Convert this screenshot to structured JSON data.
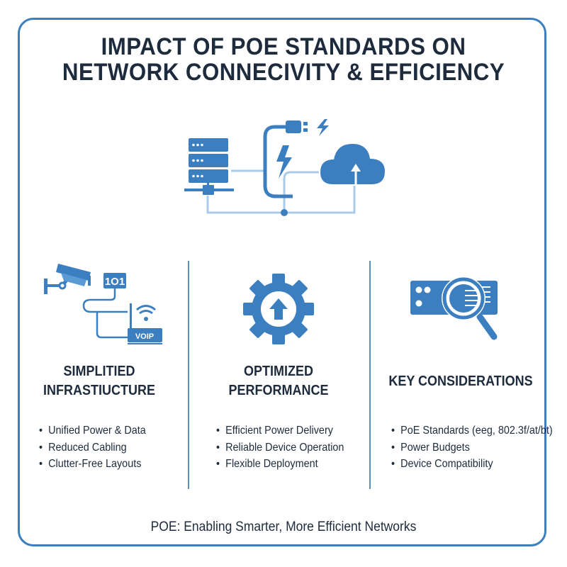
{
  "title": {
    "line1": "IMPACT OF POE STANDARDS ON",
    "line2": "NETWORK CONNECIVITY & EFFICIENCY"
  },
  "colors": {
    "accent": "#3b7fc0",
    "light_line": "#a9cbe8",
    "text": "#1d2b3c"
  },
  "hero": {
    "icons": [
      "server-icon",
      "network-connector-icon",
      "poe-cable-icon",
      "plug-icon",
      "lightning-icon",
      "cloud-upload-icon"
    ]
  },
  "columns": [
    {
      "heading1": "SIMPLITIED",
      "heading2": "INFRASTIUCTURE",
      "icon_label_box": "1O1",
      "icon_label_voip": "VOIP",
      "icons": [
        "security-camera-icon",
        "data-box-icon",
        "wifi-router-icon"
      ],
      "bullets": [
        "Unified Power & Data",
        "Reduced Cabling",
        "Clutter-Free Layouts"
      ]
    },
    {
      "heading1": "OPTIMIZED",
      "heading2": "PERFORMANCE",
      "icons": [
        "gear-upload-icon"
      ],
      "bullets": [
        "Efficient Power Delivery",
        "Reliable Device Operation",
        "Flexible Deployment"
      ]
    },
    {
      "heading1": "KEY CONSIDERATIONS",
      "heading2": "",
      "icons": [
        "device-magnifier-icon"
      ],
      "bullets": [
        "PoE Standards (eeg, 802.3f/at/bt)",
        "Power Budgets",
        "Device Compatibility"
      ]
    }
  ],
  "footer": "POE: Enabling Smarter, More Efficient Networks"
}
